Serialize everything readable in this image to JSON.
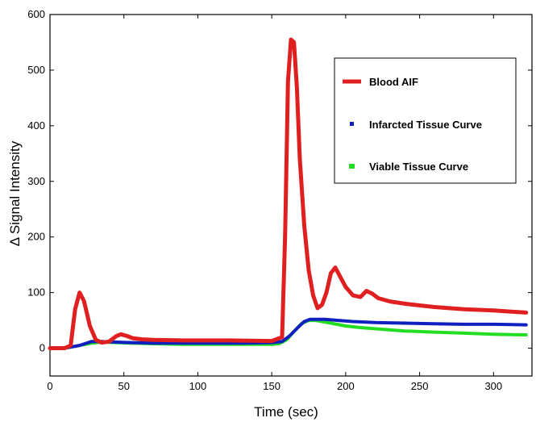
{
  "chart_data": {
    "type": "line",
    "title": "",
    "xlabel": "Time (sec)",
    "ylabel": "Δ Signal Intensity",
    "xlim": [
      0,
      326
    ],
    "ylim": [
      -50,
      600
    ],
    "xticks": [
      0,
      50,
      100,
      150,
      200,
      250,
      300
    ],
    "yticks": [
      0,
      100,
      200,
      300,
      400,
      500,
      600
    ],
    "legend_position": "top-right",
    "grid": false,
    "series": [
      {
        "name": "Blood AIF",
        "color": "#e02020",
        "line_style": "thick-line",
        "x": [
          0,
          10,
          14,
          17,
          20,
          23,
          27,
          31,
          35,
          40,
          45,
          48,
          52,
          56,
          62,
          70,
          90,
          120,
          150,
          157,
          159,
          161,
          163,
          165,
          167,
          169,
          172,
          175,
          178,
          181,
          184,
          187,
          190,
          193,
          196,
          200,
          205,
          210,
          214,
          218,
          222,
          230,
          240,
          250,
          260,
          270,
          280,
          290,
          300,
          310,
          322
        ],
        "y": [
          0,
          0,
          5,
          70,
          100,
          85,
          40,
          15,
          10,
          12,
          22,
          25,
          22,
          18,
          16,
          15,
          14,
          14,
          13,
          20,
          200,
          480,
          555,
          550,
          470,
          340,
          220,
          140,
          95,
          72,
          78,
          100,
          135,
          145,
          130,
          110,
          95,
          92,
          103,
          98,
          90,
          84,
          80,
          77,
          74,
          72,
          70,
          69,
          68,
          66,
          64
        ]
      },
      {
        "name": "Infarcted Tissue Curve",
        "color": "#1020c0",
        "line_style": "markers",
        "x": [
          0,
          12,
          20,
          28,
          35,
          45,
          55,
          70,
          90,
          110,
          130,
          150,
          157,
          162,
          168,
          172,
          176,
          180,
          186,
          195,
          205,
          220,
          240,
          260,
          280,
          300,
          322
        ],
        "y": [
          0,
          1,
          5,
          12,
          12,
          11,
          10,
          9,
          9,
          9,
          9,
          10,
          12,
          22,
          38,
          48,
          52,
          52,
          52,
          50,
          48,
          46,
          45,
          44,
          43,
          43,
          42
        ]
      },
      {
        "name": "Viable Tissue Curve",
        "color": "#22dd22",
        "line_style": "markers",
        "x": [
          0,
          12,
          20,
          28,
          35,
          45,
          55,
          70,
          90,
          110,
          130,
          150,
          155,
          160,
          165,
          170,
          175,
          180,
          190,
          200,
          210,
          225,
          240,
          260,
          280,
          300,
          322
        ],
        "y": [
          0,
          1,
          5,
          9,
          11,
          10,
          9,
          8,
          7,
          7,
          7,
          7,
          8,
          15,
          30,
          44,
          50,
          50,
          45,
          40,
          37,
          34,
          31,
          29,
          27,
          25,
          24
        ]
      }
    ]
  }
}
